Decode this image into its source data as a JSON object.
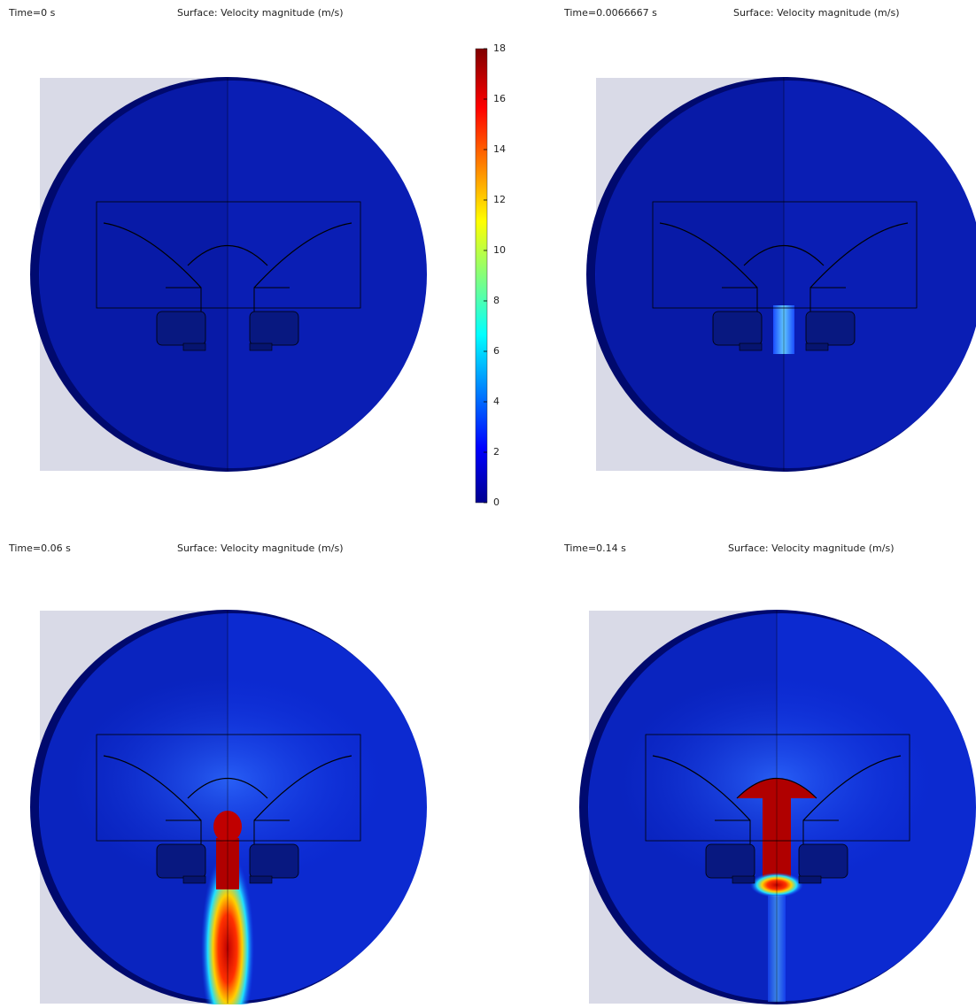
{
  "panels": [
    {
      "time": "Time=0 s",
      "title": "Surface: Velocity magnitude (m/s)"
    },
    {
      "time": "Time=0.0066667 s",
      "title": "Surface: Velocity magnitude (m/s)"
    },
    {
      "time": "Time=0.06 s",
      "title": "Surface: Velocity magnitude (m/s)"
    },
    {
      "time": "Time=0.14 s",
      "title": "Surface: Velocity magnitude (m/s)"
    }
  ],
  "colorbar": {
    "ticks": [
      0,
      2,
      4,
      6,
      8,
      10,
      12,
      14,
      16,
      18
    ]
  }
}
